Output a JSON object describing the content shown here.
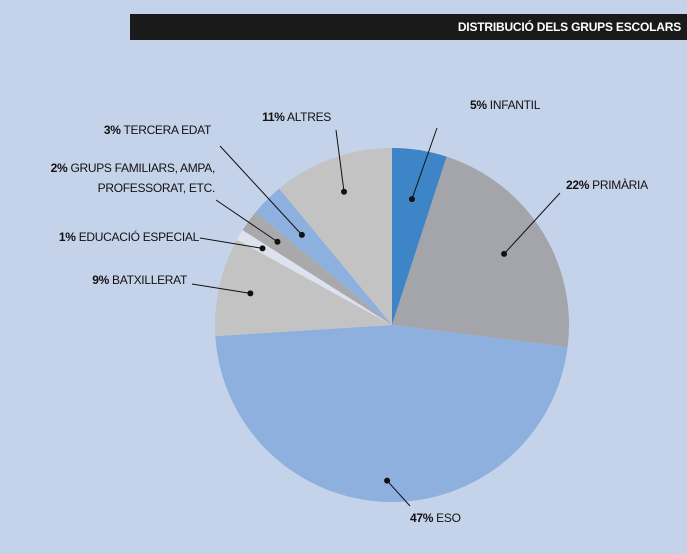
{
  "chart_data": {
    "type": "pie",
    "title": "DISTRIBUCIÓ DELS GRUPS ESCOLARS",
    "categories": [
      "INFANTIL",
      "PRIMÀRIA",
      "ESO",
      "BATXILLERAT",
      "EDUCACIÓ ESPECIAL",
      "GRUPS FAMILIARS, AMPA, PROFESSORAT, ETC.",
      "TERCERA EDAT",
      "ALTRES"
    ],
    "values": [
      5,
      22,
      47,
      9,
      1,
      2,
      3,
      11
    ],
    "value_labels": [
      "5%",
      "22%",
      "47%",
      "9%",
      "1%",
      "2%",
      "3%",
      "11%"
    ],
    "colors": [
      "#3d85c6",
      "#a3a5aa",
      "#8eb0df",
      "#c3c3c4",
      "#dde2ee",
      "#a9a9ab",
      "#8eb0df",
      "#c3c3c4"
    ]
  }
}
